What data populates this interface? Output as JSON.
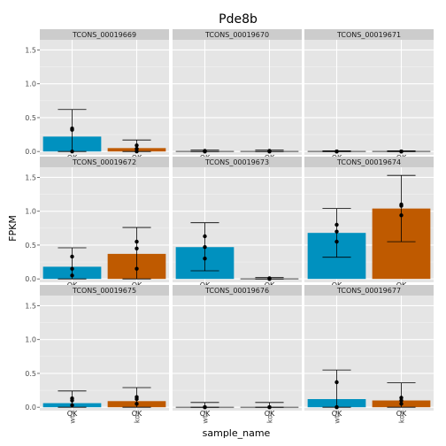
{
  "chart_data": {
    "type": "bar",
    "title": "Pde8b",
    "xlabel": "sample_name",
    "ylabel": "FPKM",
    "categories": [
      "wt",
      "ko"
    ],
    "ylim": [
      -0.05,
      1.65
    ],
    "yticks": [
      0.0,
      0.5,
      1.0,
      1.5
    ],
    "ytick_labels": [
      "0.0",
      "0.5",
      "1.0",
      "1.5"
    ],
    "grid": true,
    "legend": "none",
    "colors": {
      "wt": "#0091BF",
      "ko": "#BF5A00",
      "panel_bg": "#E5E5E5",
      "strip_bg": "#CCCCCC",
      "grid": "#FFFFFF",
      "zero_bar": "#808080"
    },
    "qc_status": "OK",
    "panels": [
      {
        "label": "TCONS_00019669",
        "bars": [
          {
            "sample": "wt",
            "value": 0.22,
            "err_low": 0.0,
            "err_high": 0.62,
            "points": [
              0.0,
              0.32,
              0.34
            ],
            "qc": "OK"
          },
          {
            "sample": "ko",
            "value": 0.05,
            "err_low": 0.0,
            "err_high": 0.17,
            "points": [
              0.0,
              0.04,
              0.09
            ],
            "qc": "OK"
          }
        ]
      },
      {
        "label": "TCONS_00019670",
        "bars": [
          {
            "sample": "wt",
            "value": 0.01,
            "err_low": 0.0,
            "err_high": 0.02,
            "points": [
              0.0,
              0.0,
              0.01
            ],
            "qc": "OK"
          },
          {
            "sample": "ko",
            "value": 0.01,
            "err_low": 0.0,
            "err_high": 0.02,
            "points": [
              0.0,
              0.0,
              0.01
            ],
            "qc": "OK"
          }
        ]
      },
      {
        "label": "TCONS_00019671",
        "bars": [
          {
            "sample": "wt",
            "value": 0.01,
            "err_low": 0.0,
            "err_high": 0.01,
            "points": [
              0.0,
              0.0,
              0.0
            ],
            "qc": "OK"
          },
          {
            "sample": "ko",
            "value": 0.01,
            "err_low": 0.0,
            "err_high": 0.01,
            "points": [
              0.0,
              0.0,
              0.0
            ],
            "qc": "OK"
          }
        ]
      },
      {
        "label": "TCONS_00019672",
        "bars": [
          {
            "sample": "wt",
            "value": 0.18,
            "err_low": 0.0,
            "err_high": 0.46,
            "points": [
              0.05,
              0.15,
              0.33
            ],
            "qc": "OK"
          },
          {
            "sample": "ko",
            "value": 0.37,
            "err_low": 0.0,
            "err_high": 0.76,
            "points": [
              0.15,
              0.45,
              0.55
            ],
            "qc": "OK"
          }
        ]
      },
      {
        "label": "TCONS_00019673",
        "bars": [
          {
            "sample": "wt",
            "value": 0.47,
            "err_low": 0.12,
            "err_high": 0.83,
            "points": [
              0.3,
              0.47,
              0.63
            ],
            "qc": "OK"
          },
          {
            "sample": "ko",
            "value": 0.01,
            "err_low": 0.0,
            "err_high": 0.02,
            "points": [
              0.0,
              0.0,
              0.01
            ],
            "qc": "OK"
          }
        ]
      },
      {
        "label": "TCONS_00019674",
        "bars": [
          {
            "sample": "wt",
            "value": 0.68,
            "err_low": 0.32,
            "err_high": 1.04,
            "points": [
              0.55,
              0.7,
              0.8
            ],
            "qc": "OK"
          },
          {
            "sample": "ko",
            "value": 1.04,
            "err_low": 0.55,
            "err_high": 1.53,
            "points": [
              0.94,
              1.08,
              1.1
            ],
            "qc": "OK"
          }
        ]
      },
      {
        "label": "TCONS_00019675",
        "bars": [
          {
            "sample": "wt",
            "value": 0.06,
            "err_low": 0.0,
            "err_high": 0.24,
            "points": [
              0.03,
              0.1,
              0.13
            ],
            "qc": "OK"
          },
          {
            "sample": "ko",
            "value": 0.09,
            "err_low": 0.0,
            "err_high": 0.29,
            "points": [
              0.05,
              0.12,
              0.15
            ],
            "qc": "OK"
          }
        ]
      },
      {
        "label": "TCONS_00019676",
        "bars": [
          {
            "sample": "wt",
            "value": 0.0,
            "err_low": 0.0,
            "err_high": 0.07,
            "points": [
              0.0,
              0.0,
              0.0
            ],
            "qc": "OK"
          },
          {
            "sample": "ko",
            "value": 0.0,
            "err_low": 0.0,
            "err_high": 0.07,
            "points": [
              0.0,
              0.0,
              0.0
            ],
            "qc": "OK"
          }
        ]
      },
      {
        "label": "TCONS_00019677",
        "bars": [
          {
            "sample": "wt",
            "value": 0.12,
            "err_low": 0.0,
            "err_high": 0.55,
            "points": [
              0.0,
              0.0,
              0.37
            ],
            "qc": "OK"
          },
          {
            "sample": "ko",
            "value": 0.1,
            "err_low": 0.0,
            "err_high": 0.36,
            "points": [
              0.05,
              0.1,
              0.14
            ],
            "qc": "OK"
          }
        ]
      }
    ]
  }
}
